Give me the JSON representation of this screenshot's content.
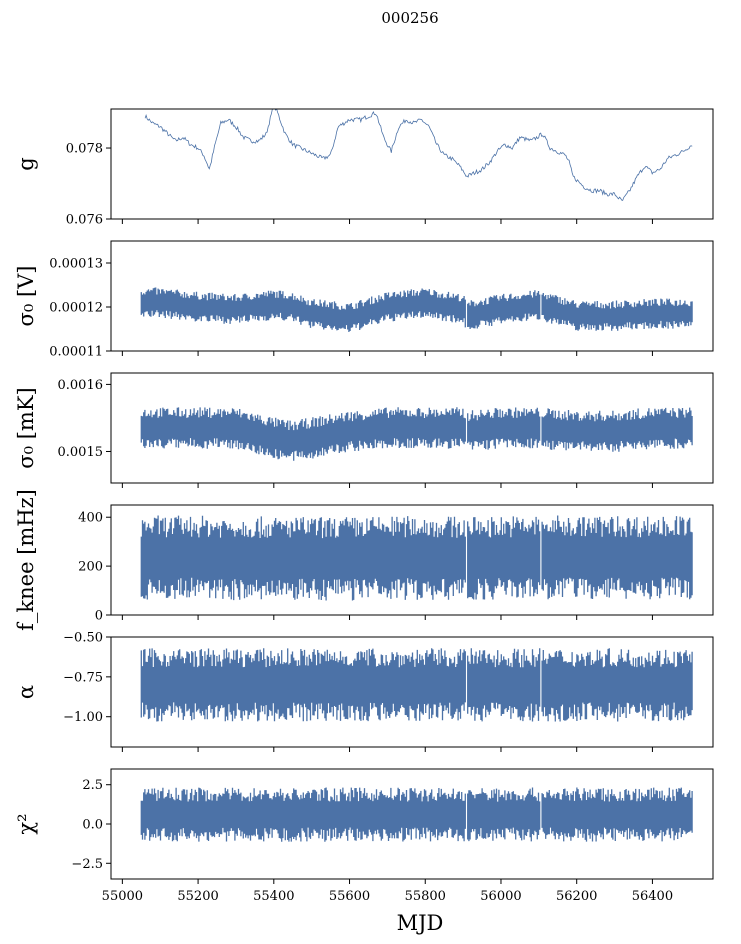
{
  "figure": {
    "title": "000256",
    "xlabel": "MJD"
  },
  "chart_data": [
    {
      "type": "line",
      "ylabel": "g",
      "ylim": [
        0.076,
        0.0791
      ],
      "yticks": [
        0.076,
        0.078
      ],
      "ytick_labels": [
        "0.076",
        "0.078"
      ],
      "xlim": [
        54970,
        56560
      ],
      "color": "#4c72a7",
      "series": [
        {
          "x": [
            55060,
            55080,
            55100,
            55120,
            55140,
            55160,
            55180,
            55200,
            55215,
            55230,
            55245,
            55260,
            55280,
            55300,
            55320,
            55340,
            55360,
            55380,
            55400,
            55410,
            55430,
            55450,
            55470,
            55490,
            55510,
            55530,
            55550,
            55570,
            55600,
            55630,
            55650,
            55670,
            55690,
            55710,
            55730,
            55750,
            55770,
            55790,
            55810,
            55830,
            55850,
            55870,
            55890,
            55910,
            55930,
            55950,
            55970,
            55990,
            56010,
            56030,
            56050,
            56080,
            56110,
            56130,
            56150,
            56170,
            56180,
            56190,
            56200,
            56220,
            56240,
            56260,
            56280,
            56300,
            56320,
            56340,
            56360,
            56380,
            56400,
            56420,
            56440,
            56460,
            56480,
            56505
          ],
          "y": [
            0.0789,
            0.0787,
            0.0786,
            0.0784,
            0.0782,
            0.0783,
            0.0781,
            0.078,
            0.0778,
            0.0774,
            0.0781,
            0.0787,
            0.0788,
            0.0786,
            0.0783,
            0.0782,
            0.0782,
            0.0784,
            0.0792,
            0.079,
            0.0784,
            0.0781,
            0.078,
            0.0779,
            0.0778,
            0.0777,
            0.0778,
            0.0786,
            0.0788,
            0.0788,
            0.0789,
            0.079,
            0.0783,
            0.0779,
            0.0786,
            0.0788,
            0.0787,
            0.0788,
            0.0786,
            0.0781,
            0.0778,
            0.0777,
            0.0775,
            0.0772,
            0.0773,
            0.0774,
            0.0776,
            0.0779,
            0.0781,
            0.078,
            0.0783,
            0.0782,
            0.0784,
            0.078,
            0.0779,
            0.0778,
            0.0776,
            0.0772,
            0.0771,
            0.0769,
            0.0768,
            0.0768,
            0.0767,
            0.0767,
            0.0765,
            0.0768,
            0.0772,
            0.0775,
            0.0773,
            0.0774,
            0.0777,
            0.0778,
            0.0779,
            0.0781
          ]
        }
      ]
    },
    {
      "type": "line",
      "ylabel": "σ₀ [V]",
      "ylim": [
        0.00011,
        0.000135
      ],
      "yticks": [
        0.00011,
        0.00012,
        0.00013
      ],
      "ytick_labels": [
        "0.00011",
        "0.00012",
        "0.00013"
      ],
      "xlim": [
        54970,
        56560
      ],
      "color": "#4c72a7",
      "band": {
        "x": [
          55050,
          55100,
          55200,
          55300,
          55400,
          55450,
          55500,
          55600,
          55700,
          55800,
          55900,
          55910,
          56000,
          56100,
          56200,
          56300,
          56400,
          56505
        ],
        "center": [
          0.000121,
          0.000121,
          0.00012,
          0.0001195,
          0.0001205,
          0.00012,
          0.0001185,
          0.0001175,
          0.00012,
          0.000121,
          0.0001195,
          0.000118,
          0.0001195,
          0.0001205,
          0.000118,
          0.000118,
          0.0001185,
          0.0001185
        ],
        "half_width": [
          3e-06,
          3e-06,
          3e-06,
          3e-06,
          3e-06,
          3e-06,
          3e-06,
          3e-06,
          3e-06,
          3e-06,
          3e-06,
          3e-06,
          3e-06,
          3e-06,
          3e-06,
          3e-06,
          3e-06,
          3e-06
        ]
      },
      "gaps": [
        55910,
        56105
      ]
    },
    {
      "type": "line",
      "ylabel": "σ₀ [mK]",
      "ylim": [
        0.001453,
        0.001617
      ],
      "yticks": [
        0.0015,
        0.0016
      ],
      "ytick_labels": [
        "0.0015",
        "0.0016"
      ],
      "xlim": [
        54970,
        56560
      ],
      "color": "#4c72a7",
      "band": {
        "x": [
          55050,
          55100,
          55200,
          55300,
          55400,
          55450,
          55500,
          55600,
          55700,
          55800,
          55900,
          55910,
          56000,
          56100,
          56200,
          56300,
          56400,
          56505
        ],
        "center": [
          0.001535,
          0.001535,
          0.001535,
          0.001535,
          0.00152,
          0.001515,
          0.00152,
          0.00153,
          0.001535,
          0.001535,
          0.001535,
          0.00153,
          0.001535,
          0.001535,
          0.00153,
          0.00153,
          0.001535,
          0.001535
        ],
        "half_width": [
          2.7e-05,
          2.7e-05,
          2.7e-05,
          2.7e-05,
          2.7e-05,
          2.7e-05,
          2.7e-05,
          2.7e-05,
          2.7e-05,
          2.7e-05,
          2.7e-05,
          2.7e-05,
          2.7e-05,
          2.7e-05,
          2.7e-05,
          2.7e-05,
          2.7e-05,
          2.7e-05
        ]
      },
      "gaps": [
        55910,
        56105
      ]
    },
    {
      "type": "line",
      "ylabel": "f_knee [mHz]",
      "ylim": [
        0,
        450
      ],
      "yticks": [
        0,
        200,
        400
      ],
      "ytick_labels": [
        "0",
        "200",
        "400"
      ],
      "xlim": [
        54970,
        56560
      ],
      "color": "#4c72a7",
      "band": {
        "x": [
          55050,
          55200,
          55400,
          55600,
          55800,
          55910,
          56000,
          56200,
          56400,
          56505
        ],
        "center": [
          235,
          235,
          230,
          230,
          235,
          230,
          235,
          235,
          235,
          235
        ],
        "half_width": [
          150,
          150,
          150,
          150,
          150,
          150,
          150,
          150,
          150,
          150
        ]
      },
      "gaps": [
        55910,
        56105
      ]
    },
    {
      "type": "line",
      "ylabel": "α",
      "ylim": [
        -1.19,
        -0.5
      ],
      "yticks": [
        -1.0,
        -0.75,
        -0.5
      ],
      "ytick_labels": [
        "−1.00",
        "−0.75",
        "−0.50"
      ],
      "xlim": [
        54970,
        56560
      ],
      "color": "#4c72a7",
      "band": {
        "x": [
          55050,
          55200,
          55400,
          55600,
          55800,
          55910,
          56000,
          56200,
          56400,
          56505
        ],
        "center": [
          -0.8,
          -0.8,
          -0.8,
          -0.8,
          -0.8,
          -0.8,
          -0.8,
          -0.8,
          -0.8,
          -0.8
        ],
        "half_width": [
          0.2,
          0.2,
          0.2,
          0.2,
          0.2,
          0.2,
          0.2,
          0.2,
          0.2,
          0.2
        ]
      },
      "gaps": [
        55910,
        56105
      ]
    },
    {
      "type": "line",
      "ylabel": "χ²",
      "ylim": [
        -3.5,
        3.5
      ],
      "yticks": [
        -2.5,
        0.0,
        2.5
      ],
      "ytick_labels": [
        "−2.5",
        "0.0",
        "2.5"
      ],
      "xlim": [
        54970,
        56560
      ],
      "color": "#4c72a7",
      "band": {
        "x": [
          55050,
          55200,
          55400,
          55600,
          55800,
          55910,
          56000,
          56200,
          56400,
          56505
        ],
        "center": [
          0.6,
          0.6,
          0.6,
          0.6,
          0.6,
          0.6,
          0.6,
          0.6,
          0.6,
          0.6
        ],
        "half_width": [
          1.5,
          1.5,
          1.5,
          1.5,
          1.5,
          1.5,
          1.5,
          1.5,
          1.5,
          1.5
        ]
      },
      "gaps": [
        55910,
        56105
      ]
    }
  ],
  "xaxis": {
    "ticks": [
      55000,
      55200,
      55400,
      55600,
      55800,
      56000,
      56200,
      56400
    ],
    "tick_labels": [
      "55000",
      "55200",
      "55400",
      "55600",
      "55800",
      "56000",
      "56200",
      "56400"
    ]
  }
}
